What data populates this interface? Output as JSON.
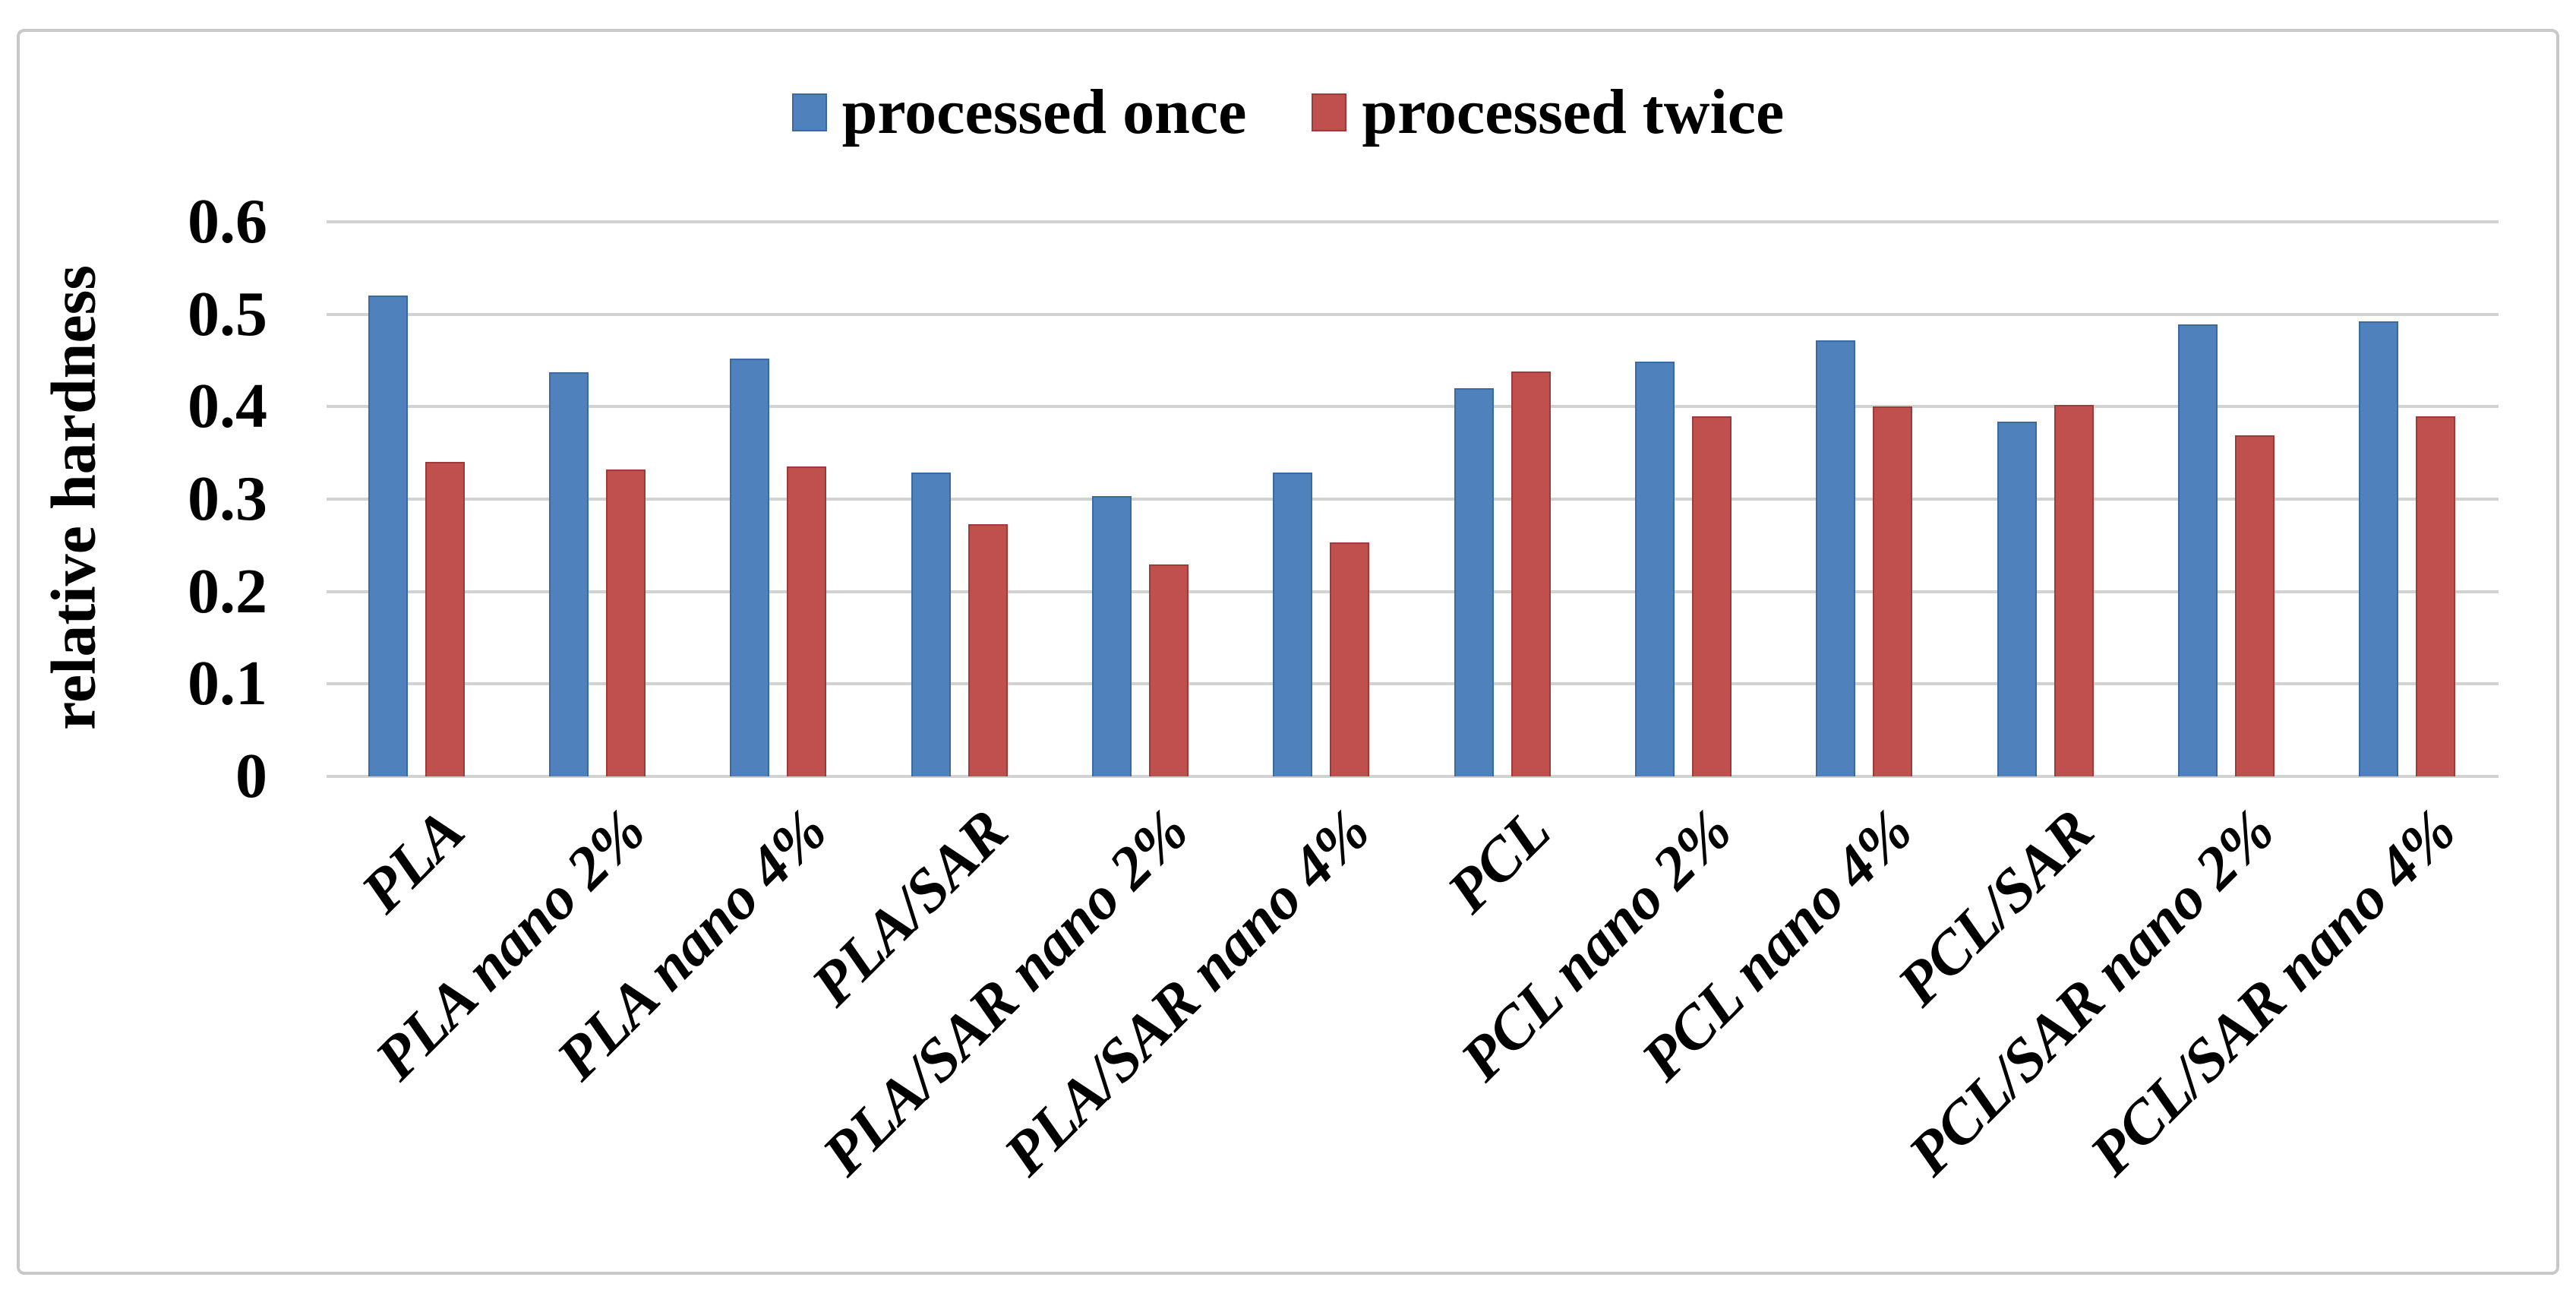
{
  "chart_data": {
    "type": "bar",
    "title": "",
    "xlabel": "",
    "ylabel": "relative hardness",
    "ylim": [
      0,
      0.6
    ],
    "grid": true,
    "legend_position": "top-center",
    "yticks": [
      {
        "value": 0.0,
        "label": "0"
      },
      {
        "value": 0.1,
        "label": "0.1"
      },
      {
        "value": 0.2,
        "label": "0.2"
      },
      {
        "value": 0.3,
        "label": "0.3"
      },
      {
        "value": 0.4,
        "label": "0.4"
      },
      {
        "value": 0.5,
        "label": "0.5"
      },
      {
        "value": 0.6,
        "label": "0.6"
      }
    ],
    "categories": [
      "PLA",
      "PLA nano 2%",
      "PLA nano 4%",
      "PLA/SAR",
      "PLA/SAR nano 2%",
      "PLA/SAR nano 4%",
      "PCL",
      "PCL nano 2%",
      "PCL nano 4%",
      "PCL/SAR",
      "PCL/SAR nano 2%",
      "PCL/SAR nano 4%"
    ],
    "series": [
      {
        "name": "processed once",
        "color": "#4F81BD",
        "border_color": "#3A6A9F",
        "values": [
          0.52,
          0.437,
          0.452,
          0.329,
          0.303,
          0.329,
          0.42,
          0.449,
          0.472,
          0.384,
          0.489,
          0.492
        ]
      },
      {
        "name": "processed twice",
        "color": "#C0504D",
        "border_color": "#9E3B38",
        "values": [
          0.34,
          0.332,
          0.335,
          0.273,
          0.229,
          0.253,
          0.438,
          0.39,
          0.4,
          0.402,
          0.369,
          0.39
        ]
      }
    ]
  },
  "colors": {
    "gridline": "#d2d2d2",
    "frame_border": "#c8c8c8",
    "text": "#000000",
    "background": "#ffffff"
  }
}
